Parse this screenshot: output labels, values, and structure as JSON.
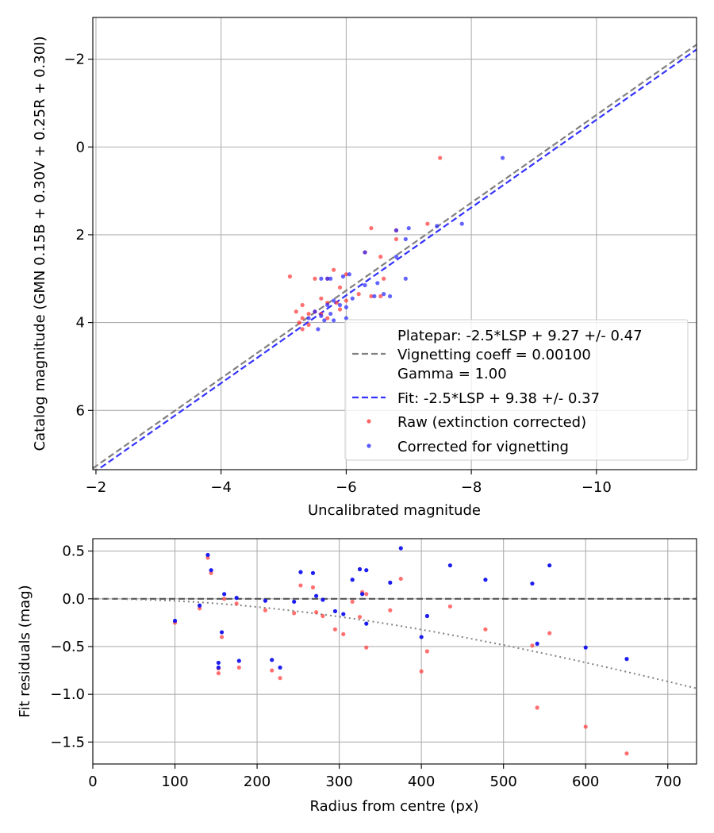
{
  "chart_data": [
    {
      "type": "scatter",
      "xlabel": "Uncalibrated magnitude",
      "ylabel": "Catalog magnitude (GMN 0.15B + 0.30V + 0.25R + 0.30I)",
      "xlim": [
        -1.95,
        -11.6
      ],
      "ylim": [
        7.35,
        -2.95
      ],
      "xticks": [
        -2,
        -4,
        -6,
        -8,
        -10
      ],
      "xtick_labels": [
        "−2",
        "−4",
        "−6",
        "−8",
        "−10"
      ],
      "yticks": [
        -2,
        0,
        2,
        4,
        6
      ],
      "ytick_labels": [
        "−2",
        "0",
        "2",
        "4",
        "6"
      ],
      "grid": true,
      "legend_position": "lower-right",
      "lines": [
        {
          "name": "platepar",
          "label_lines": [
            "Platepar: -2.5*LSP + 9.27 +/- 0.47",
            "Vignetting coeff = 0.00100",
            "Gamma = 1.00"
          ],
          "slope": 1.0,
          "intercept": 9.27,
          "style": "dashed",
          "color": "#808080"
        },
        {
          "name": "fit",
          "label_lines": [
            "Fit: -2.5*LSP + 9.38 +/- 0.37"
          ],
          "slope": 1.0,
          "intercept": 9.38,
          "style": "dashed",
          "color": "#3333ff"
        }
      ],
      "series": [
        {
          "name": "Raw (extinction corrected)",
          "color": "#ff3333",
          "points": [
            [
              -7.5,
              0.25
            ],
            [
              -6.4,
              1.85
            ],
            [
              -6.8,
              1.9
            ],
            [
              -7.3,
              1.75
            ],
            [
              -6.8,
              2.1
            ],
            [
              -6.3,
              2.4
            ],
            [
              -6.55,
              2.5
            ],
            [
              -5.8,
              2.8
            ],
            [
              -5.1,
              2.95
            ],
            [
              -5.5,
              3.0
            ],
            [
              -5.7,
              3.0
            ],
            [
              -6.0,
              2.9
            ],
            [
              -6.6,
              3.0
            ],
            [
              -5.9,
              3.2
            ],
            [
              -6.2,
              3.35
            ],
            [
              -6.4,
              3.4
            ],
            [
              -6.55,
              3.4
            ],
            [
              -5.6,
              3.45
            ],
            [
              -5.3,
              3.6
            ],
            [
              -5.7,
              3.55
            ],
            [
              -5.85,
              3.55
            ],
            [
              -6.0,
              3.5
            ],
            [
              -5.2,
              3.75
            ],
            [
              -5.5,
              3.75
            ],
            [
              -5.4,
              3.8
            ],
            [
              -5.6,
              3.8
            ],
            [
              -5.9,
              3.7
            ],
            [
              -5.3,
              3.9
            ],
            [
              -5.7,
              3.9
            ],
            [
              -5.25,
              4.0
            ],
            [
              -5.4,
              4.05
            ],
            [
              -5.3,
              4.15
            ]
          ]
        },
        {
          "name": "Corrected for vignetting",
          "color": "#2222ff",
          "points": [
            [
              -8.5,
              0.25
            ],
            [
              -7.85,
              1.75
            ],
            [
              -7.0,
              1.85
            ],
            [
              -6.8,
              1.9
            ],
            [
              -7.45,
              1.8
            ],
            [
              -6.95,
              2.1
            ],
            [
              -6.8,
              2.5
            ],
            [
              -6.3,
              2.4
            ],
            [
              -5.95,
              2.95
            ],
            [
              -6.05,
              2.9
            ],
            [
              -5.7,
              3.0
            ],
            [
              -5.6,
              3.0
            ],
            [
              -5.75,
              3.0
            ],
            [
              -6.95,
              3.0
            ],
            [
              -6.5,
              3.1
            ],
            [
              -6.3,
              3.15
            ],
            [
              -6.6,
              3.35
            ],
            [
              -6.7,
              3.4
            ],
            [
              -6.45,
              3.4
            ],
            [
              -5.8,
              3.5
            ],
            [
              -6.1,
              3.45
            ],
            [
              -5.9,
              3.6
            ],
            [
              -6.0,
              3.65
            ],
            [
              -5.7,
              3.6
            ],
            [
              -5.5,
              3.75
            ],
            [
              -5.6,
              3.85
            ],
            [
              -5.75,
              3.8
            ],
            [
              -5.65,
              3.95
            ],
            [
              -5.8,
              3.95
            ],
            [
              -6.0,
              3.9
            ],
            [
              -5.55,
              4.15
            ],
            [
              -5.4,
              3.9
            ]
          ]
        }
      ]
    },
    {
      "type": "scatter",
      "xlabel": "Radius from centre (px)",
      "ylabel": "Fit residuals (mag)",
      "xlim": [
        0,
        735
      ],
      "ylim": [
        -1.73,
        0.63
      ],
      "xticks": [
        0,
        100,
        200,
        300,
        400,
        500,
        600,
        700
      ],
      "xtick_labels": [
        "0",
        "100",
        "200",
        "300",
        "400",
        "500",
        "600",
        "700"
      ],
      "yticks": [
        0.5,
        0.0,
        -0.5,
        -1.0,
        -1.5
      ],
      "ytick_labels": [
        "0.5",
        "0.0",
        "−0.5",
        "−1.0",
        "−1.5"
      ],
      "grid": true,
      "reference_line": {
        "y": 0,
        "style": "dashed",
        "color": "#555555"
      },
      "curve": {
        "name": "vignetting model",
        "coeff": 0.001,
        "style": "dotted",
        "color": "#808080"
      },
      "series": [
        {
          "name": "Raw (extinction corrected)",
          "color": "#ff3333",
          "points": [
            [
              100,
              -0.25
            ],
            [
              130,
              -0.1
            ],
            [
              140,
              0.43
            ],
            [
              144,
              0.27
            ],
            [
              153,
              -0.73
            ],
            [
              153,
              -0.78
            ],
            [
              157,
              -0.4
            ],
            [
              160,
              0.0
            ],
            [
              175,
              -0.05
            ],
            [
              178,
              -0.72
            ],
            [
              210,
              -0.12
            ],
            [
              218,
              -0.75
            ],
            [
              228,
              -0.83
            ],
            [
              245,
              -0.15
            ],
            [
              253,
              0.14
            ],
            [
              268,
              0.12
            ],
            [
              272,
              -0.14
            ],
            [
              280,
              -0.18
            ],
            [
              295,
              -0.32
            ],
            [
              305,
              -0.37
            ],
            [
              316,
              -0.03
            ],
            [
              325,
              -0.19
            ],
            [
              328,
              0.07
            ],
            [
              333,
              -0.51
            ],
            [
              333,
              0.05
            ],
            [
              362,
              -0.12
            ],
            [
              375,
              0.21
            ],
            [
              400,
              -0.76
            ],
            [
              407,
              -0.55
            ],
            [
              435,
              -0.08
            ],
            [
              478,
              -0.32
            ],
            [
              535,
              -0.49
            ],
            [
              541,
              -1.14
            ],
            [
              556,
              -0.36
            ],
            [
              600,
              -1.34
            ],
            [
              650,
              -1.62
            ]
          ]
        },
        {
          "name": "Corrected for vignetting",
          "color": "#1111ee",
          "points": [
            [
              100,
              -0.23
            ],
            [
              130,
              -0.07
            ],
            [
              140,
              0.46
            ],
            [
              144,
              0.3
            ],
            [
              153,
              -0.72
            ],
            [
              153,
              -0.67
            ],
            [
              157,
              -0.35
            ],
            [
              160,
              0.05
            ],
            [
              175,
              0.01
            ],
            [
              178,
              -0.65
            ],
            [
              210,
              -0.02
            ],
            [
              218,
              -0.64
            ],
            [
              228,
              -0.72
            ],
            [
              245,
              -0.03
            ],
            [
              253,
              0.28
            ],
            [
              268,
              0.27
            ],
            [
              272,
              0.03
            ],
            [
              280,
              -0.01
            ],
            [
              295,
              -0.13
            ],
            [
              305,
              -0.16
            ],
            [
              316,
              0.2
            ],
            [
              325,
              0.31
            ],
            [
              328,
              0.05
            ],
            [
              333,
              0.3
            ],
            [
              333,
              -0.26
            ],
            [
              362,
              0.17
            ],
            [
              375,
              0.53
            ],
            [
              400,
              -0.4
            ],
            [
              407,
              -0.18
            ],
            [
              435,
              0.35
            ],
            [
              478,
              0.2
            ],
            [
              535,
              0.16
            ],
            [
              541,
              -0.47
            ],
            [
              556,
              0.35
            ],
            [
              600,
              -0.51
            ],
            [
              650,
              -0.63
            ]
          ]
        }
      ]
    }
  ]
}
